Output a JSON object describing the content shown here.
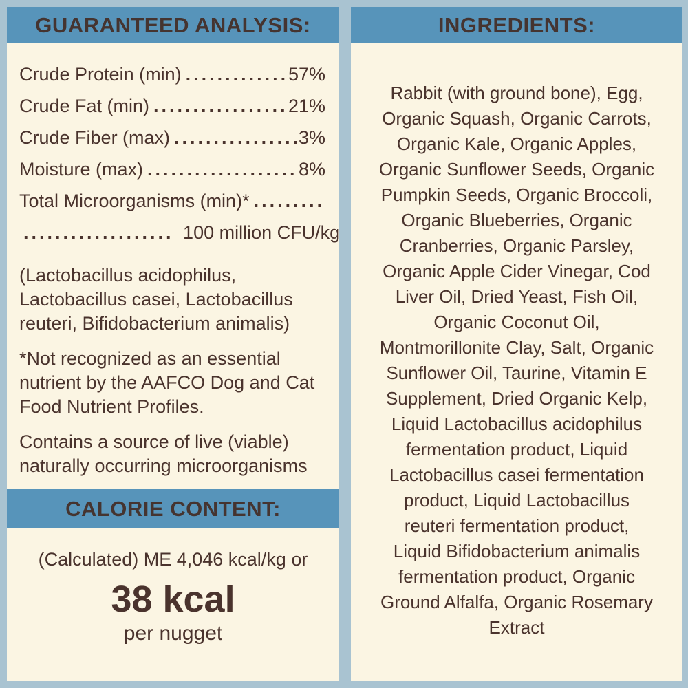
{
  "colors": {
    "background": "#a9c3d1",
    "header_bar": "#5794ba",
    "panel": "#fbf5e3",
    "text": "#4a332d"
  },
  "guaranteed_analysis": {
    "header": "GUARANTEED ANALYSIS:",
    "rows": [
      {
        "label": "Crude Protein (min)",
        "dots": "....................................",
        "value": "57%"
      },
      {
        "label": "Crude Fat (min)",
        "dots": "....................................",
        "value": "21%"
      },
      {
        "label": "Crude Fiber (max)",
        "dots": "....................................",
        "value": "3%"
      },
      {
        "label": "Moisture (max)",
        "dots": "....................................",
        "value": "8%"
      }
    ],
    "micro_label": "Total Microorganisms (min)*",
    "micro_dots": "....................",
    "cfu_dots": "...................",
    "cfu_value": "100 million CFU/kg",
    "bacteria_note": [
      "(Lactobacillus acidophilus,",
      "Lactobacillus casei, Lactobacillus",
      "reuteri, Bifidobacterium animalis)"
    ],
    "footnote": [
      "*Not recognized as an essential",
      "nutrient by the AAFCO Dog and Cat",
      "Food Nutrient Profiles."
    ],
    "live_note": [
      "Contains a source of live (viable)",
      "naturally occurring microorganisms"
    ]
  },
  "calorie_content": {
    "header": "CALORIE CONTENT:",
    "line": "(Calculated) ME 4,046 kcal/kg or",
    "value": "38 kcal",
    "unit": "per nugget"
  },
  "ingredients": {
    "header": "INGREDIENTS:",
    "lines": [
      "Rabbit (with ground bone), Egg,",
      "Organic Squash, Organic Carrots,",
      "Organic Kale, Organic Apples,",
      "Organic Sunflower Seeds, Organic",
      "Pumpkin Seeds, Organic Broccoli,",
      "Organic Blueberries, Organic",
      "Cranberries, Organic Parsley,",
      "Organic Apple Cider Vinegar, Cod",
      "Liver Oil, Dried Yeast, Fish Oil,",
      "Organic Coconut Oil,",
      "Montmorillonite Clay, Salt, Organic",
      "Sunflower Oil, Taurine, Vitamin E",
      "Supplement, Dried Organic Kelp,",
      "Liquid Lactobacillus acidophilus",
      "fermentation product, Liquid",
      "Lactobacillus casei fermentation",
      "product, Liquid Lactobacillus",
      "reuteri fermentation product,",
      "Liquid Bifidobacterium animalis",
      "fermentation product, Organic",
      "Ground Alfalfa, Organic Rosemary",
      "Extract"
    ]
  }
}
